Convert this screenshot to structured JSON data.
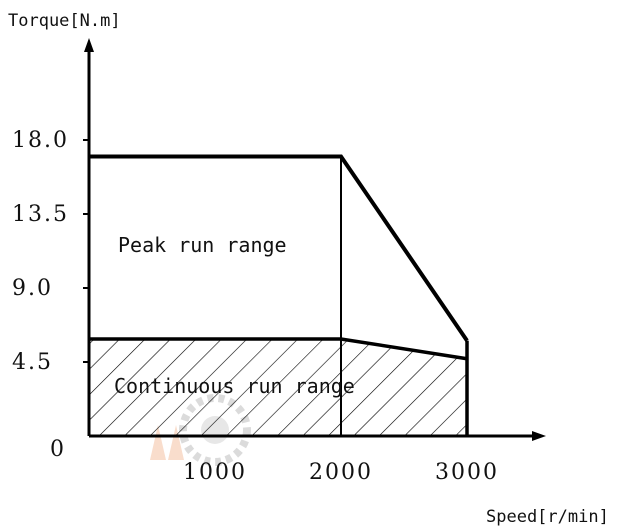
{
  "chart_data": {
    "type": "area",
    "ylabel": "Torque[N.m]",
    "xlabel": "Speed[r/min]",
    "x_ticks": [
      {
        "value": 0,
        "label": "0"
      },
      {
        "value": 1000,
        "label": "1000"
      },
      {
        "value": 2000,
        "label": "2000"
      },
      {
        "value": 3000,
        "label": "3000"
      }
    ],
    "y_ticks": [
      {
        "value": 4.5,
        "label": "4.5"
      },
      {
        "value": 9.0,
        "label": "9.0"
      },
      {
        "value": 13.5,
        "label": "13.5"
      },
      {
        "value": 18.0,
        "label": "18.0"
      }
    ],
    "xlim": [
      0,
      3000
    ],
    "ylim": [
      0,
      18.0
    ],
    "grid": false,
    "series": [
      {
        "name": "Peak run range",
        "points": [
          [
            0,
            17.0
          ],
          [
            2000,
            17.0
          ],
          [
            3000,
            5.8
          ]
        ]
      },
      {
        "name": "Continuous run range",
        "points": [
          [
            0,
            5.9
          ],
          [
            2000,
            5.9
          ],
          [
            3000,
            4.7
          ]
        ]
      }
    ],
    "region_labels": {
      "peak": "Peak run range",
      "continuous": "Continuous run range"
    },
    "colors": {
      "line": "#000000",
      "hatch": "#000000",
      "background": "#ffffff"
    }
  }
}
